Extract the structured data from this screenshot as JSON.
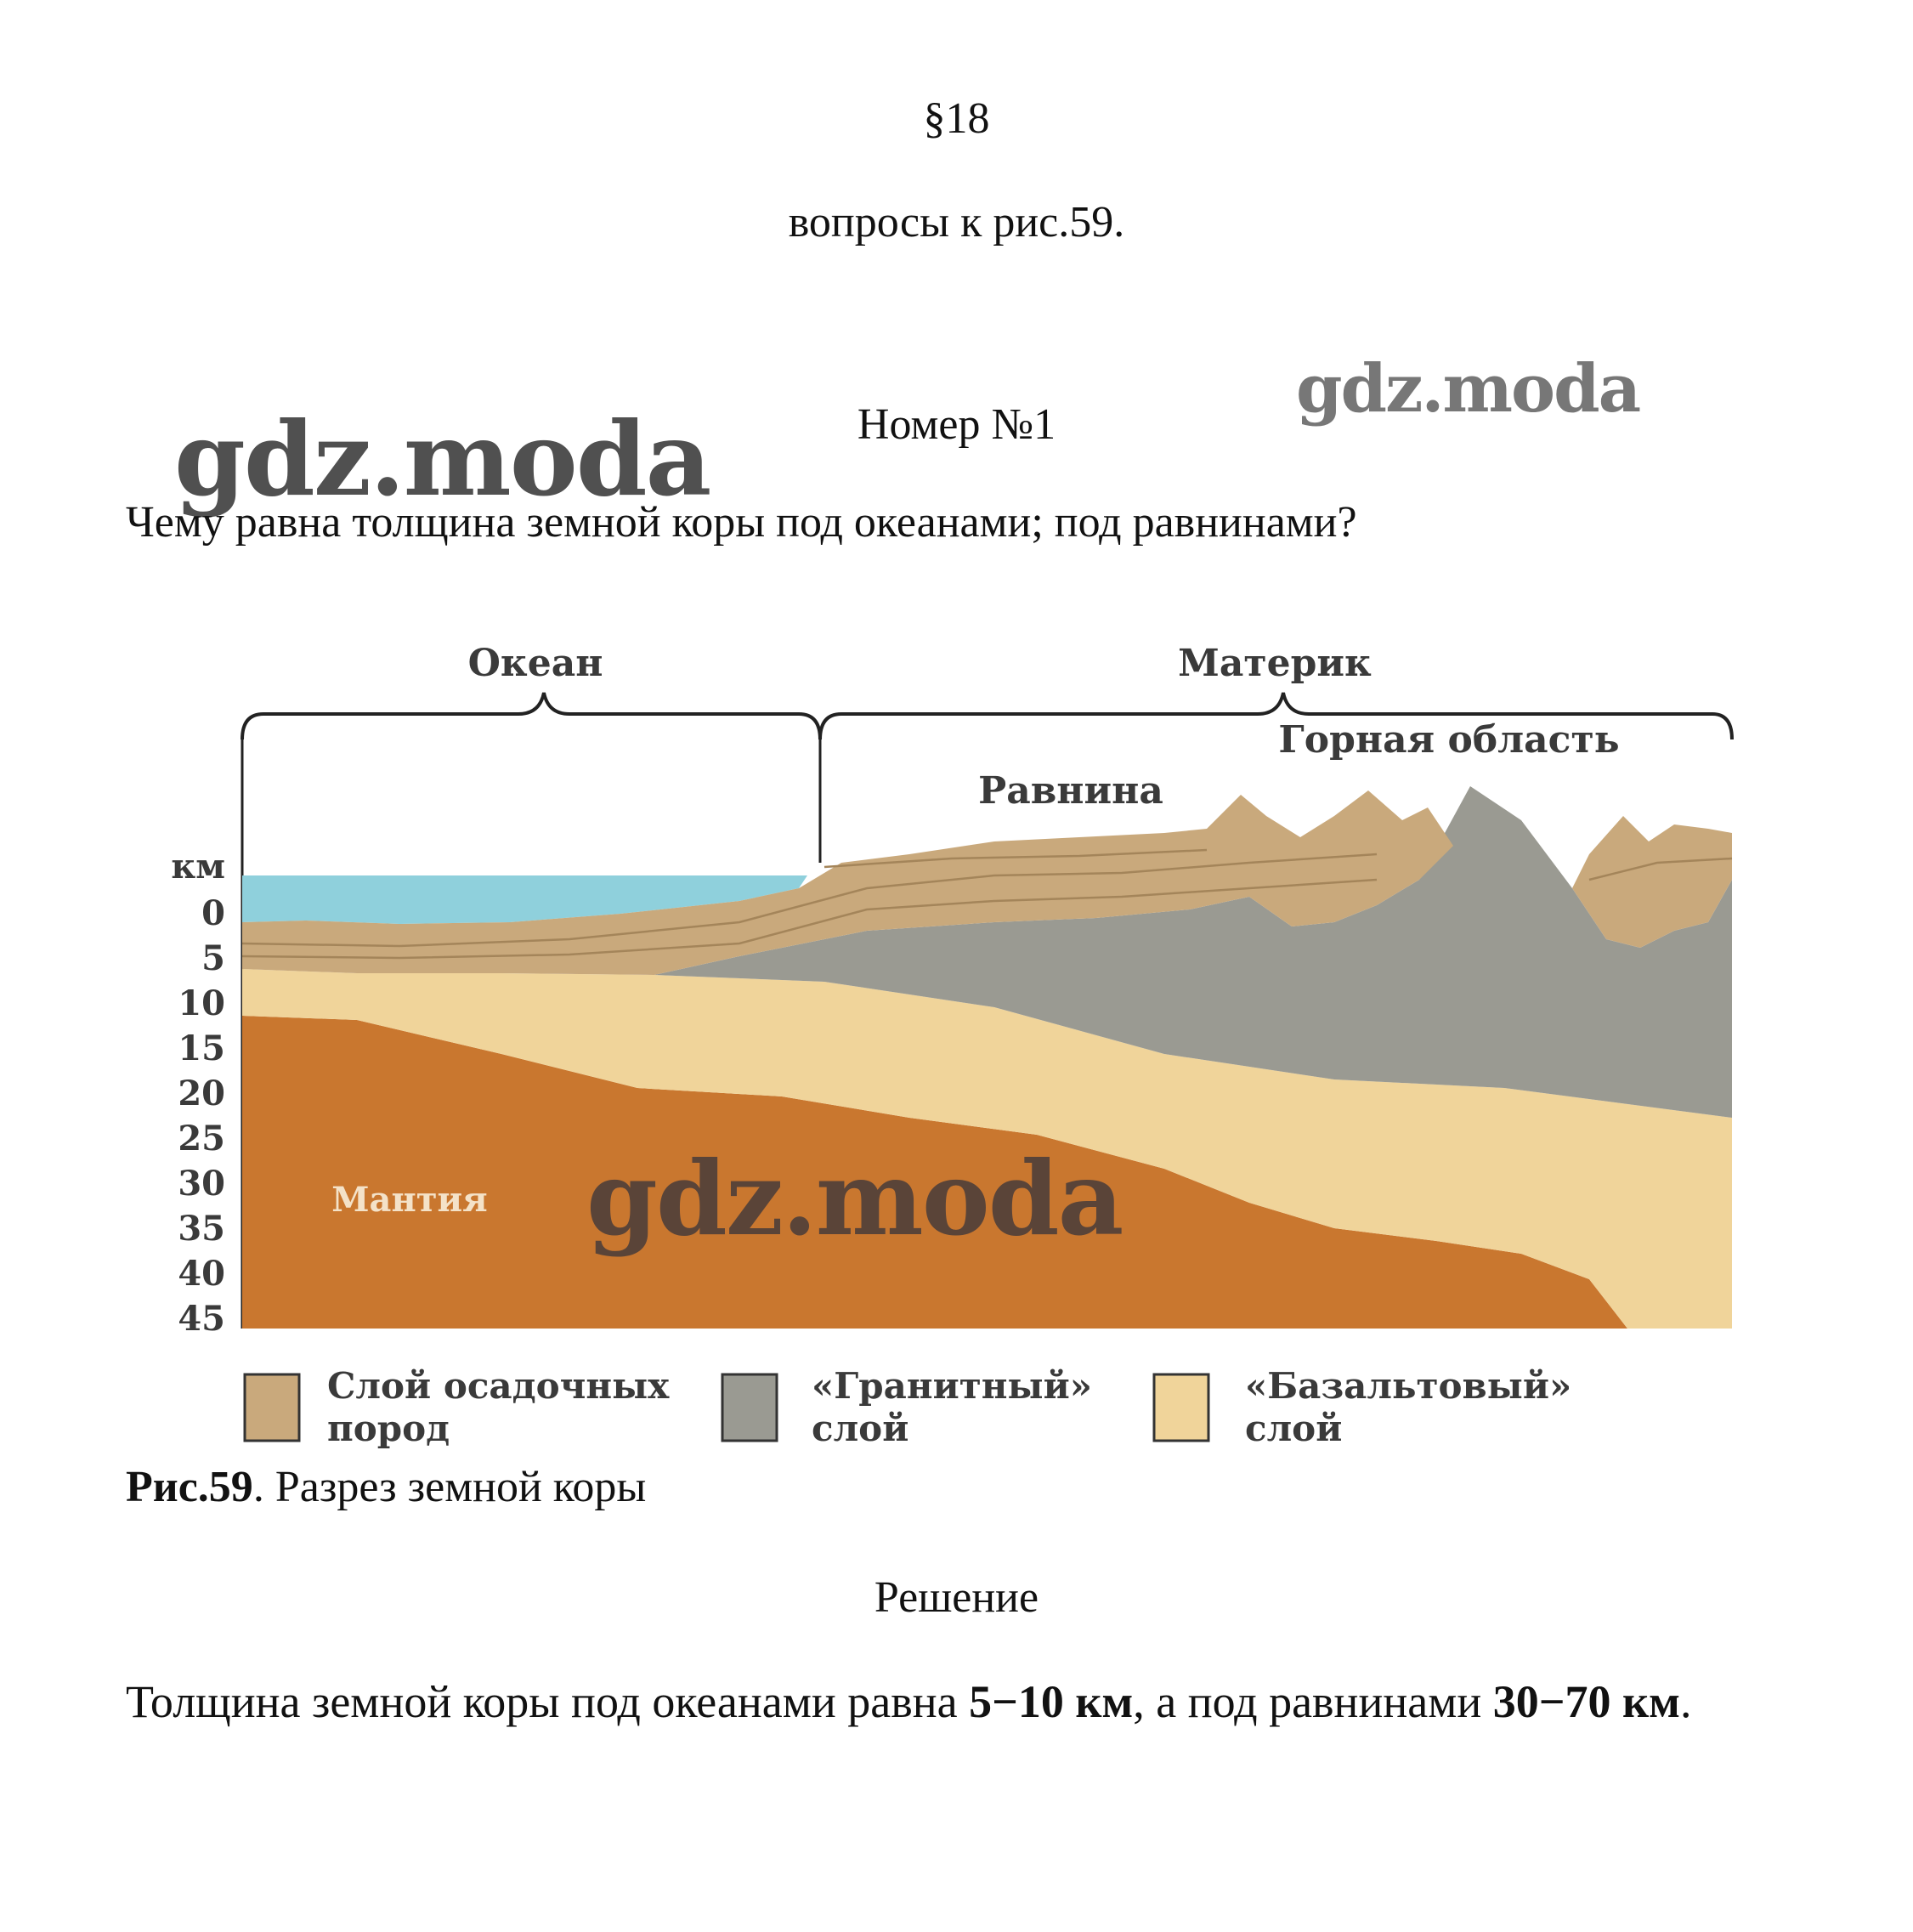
{
  "header": {
    "section": "§18",
    "subtitle": "вопросы к рис.59."
  },
  "task": {
    "number": "Номер №1",
    "question": "Чему равна толщина земной коры под океанами; под равнинами?"
  },
  "watermarks": [
    "gdz.moda",
    "gdz.moda",
    "gdz.moda"
  ],
  "figure": {
    "labels": {
      "ocean": "Океан",
      "continent": "Материк",
      "mountain": "Горная область",
      "plain": "Равнина",
      "mantle": "Мантия",
      "km": "км"
    },
    "depth_ticks": [
      "0",
      "5",
      "10",
      "15",
      "20",
      "25",
      "30",
      "35",
      "40",
      "45"
    ],
    "legend": [
      {
        "line1": "Слой осадочных",
        "line2": "пород",
        "color": "#c9a97c"
      },
      {
        "line1": "«Гранитный»",
        "line2": "слой",
        "color": "#9a9a92"
      },
      {
        "line1": "«Базальтовый»",
        "line2": "слой",
        "color": "#f0d49a"
      }
    ],
    "colors": {
      "water": "#8fd0dc",
      "sediment": "#c9a97c",
      "granite": "#9a9a92",
      "basalt": "#f0d49a",
      "mantle": "#c9772f"
    }
  },
  "caption": {
    "bold": "Рис.59",
    "text": ". Разрез земной коры"
  },
  "solution": {
    "heading": "Решение",
    "part1": "Толщина земной коры под океанами равна ",
    "bold1": "5−10 км",
    "part2": ", а под равнинами ",
    "bold2": "30−70 км",
    "part3": "."
  }
}
